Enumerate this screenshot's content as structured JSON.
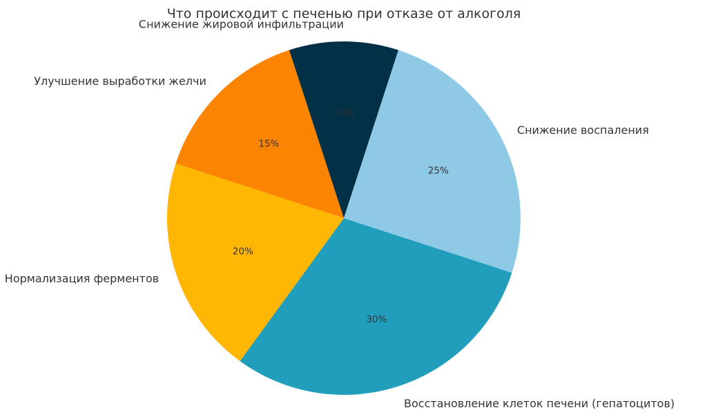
{
  "chart_data": {
    "type": "pie",
    "title": "Что происходит с печенью при отказе от алкоголя",
    "categories": [
      "Восстановление клеток печени (гепатоцитов)",
      "Нормализация ферментов",
      "Улучшение выработки желчи",
      "Снижение жировой инфильтрации",
      "Снижение воспаления"
    ],
    "values": [
      30,
      20,
      15,
      10,
      25
    ],
    "value_labels": [
      "30%",
      "20%",
      "15%",
      "10%",
      "25%"
    ],
    "colors": [
      "#219ebc",
      "#ffb703",
      "#fb8500",
      "#023047",
      "#8ecae6"
    ],
    "legend": "none"
  }
}
